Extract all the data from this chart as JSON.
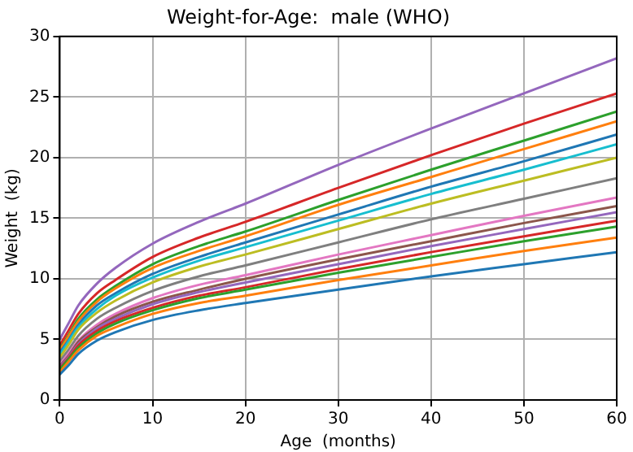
{
  "chart_data": {
    "type": "line",
    "title": "Weight-for-Age:  male (WHO)",
    "xlabel": "Age  (months)",
    "ylabel": "Weight  (kg)",
    "x": [
      0,
      1,
      2,
      4,
      6,
      10,
      15,
      20,
      30,
      40,
      50,
      60
    ],
    "xlim": [
      0,
      60
    ],
    "xticks": [
      0,
      10,
      20,
      30,
      40,
      50,
      60
    ],
    "ylim": [
      0,
      30
    ],
    "yticks": [
      0,
      5,
      10,
      15,
      20,
      25,
      30
    ],
    "grid": true,
    "marker": "none",
    "line_style": "solid",
    "series": [
      {
        "color": "#1f77b4",
        "values": [
          2.1,
          2.9,
          3.8,
          4.9,
          5.6,
          6.6,
          7.4,
          8.0,
          9.1,
          10.2,
          11.2,
          12.2
        ]
      },
      {
        "color": "#ff7f0e",
        "values": [
          2.3,
          3.2,
          4.1,
          5.3,
          6.0,
          7.1,
          8.0,
          8.6,
          9.9,
          11.1,
          12.3,
          13.4
        ]
      },
      {
        "color": "#2ca02c",
        "values": [
          2.5,
          3.4,
          4.3,
          5.5,
          6.3,
          7.4,
          8.4,
          9.1,
          10.5,
          11.8,
          13.1,
          14.3
        ]
      },
      {
        "color": "#d62728",
        "values": [
          2.6,
          3.5,
          4.5,
          5.7,
          6.5,
          7.6,
          8.6,
          9.3,
          10.8,
          12.2,
          13.5,
          14.8
        ]
      },
      {
        "color": "#9467bd",
        "values": [
          2.7,
          3.6,
          4.6,
          5.9,
          6.7,
          7.9,
          8.9,
          9.7,
          11.2,
          12.7,
          14.1,
          15.5
        ]
      },
      {
        "color": "#8c564b",
        "values": [
          2.8,
          3.7,
          4.8,
          6.0,
          6.9,
          8.1,
          9.1,
          10.0,
          11.6,
          13.1,
          14.6,
          16.0
        ]
      },
      {
        "color": "#e377c2",
        "values": [
          2.9,
          3.9,
          4.9,
          6.2,
          7.1,
          8.4,
          9.5,
          10.3,
          12.0,
          13.6,
          15.2,
          16.7
        ]
      },
      {
        "color": "#7f7f7f",
        "values": [
          3.2,
          4.2,
          5.3,
          6.7,
          7.6,
          9.0,
          10.2,
          11.1,
          13.0,
          14.9,
          16.6,
          18.3
        ]
      },
      {
        "color": "#bcbd22",
        "values": [
          3.5,
          4.6,
          5.8,
          7.2,
          8.2,
          9.7,
          11.0,
          12.0,
          14.1,
          16.2,
          18.1,
          20.0
        ]
      },
      {
        "color": "#17becf",
        "values": [
          3.7,
          4.9,
          6.0,
          7.5,
          8.6,
          10.1,
          11.5,
          12.6,
          14.8,
          17.0,
          19.0,
          21.1
        ]
      },
      {
        "color": "#1f77b4",
        "values": [
          3.9,
          5.0,
          6.2,
          7.8,
          8.8,
          10.4,
          11.8,
          13.0,
          15.3,
          17.6,
          19.7,
          21.9
        ]
      },
      {
        "color": "#ff7f0e",
        "values": [
          4.1,
          5.3,
          6.5,
          8.1,
          9.2,
          10.9,
          12.3,
          13.5,
          16.1,
          18.4,
          20.7,
          23.0
        ]
      },
      {
        "color": "#2ca02c",
        "values": [
          4.2,
          5.4,
          6.7,
          8.3,
          9.4,
          11.2,
          12.7,
          13.9,
          16.5,
          19.0,
          21.4,
          23.8
        ]
      },
      {
        "color": "#d62728",
        "values": [
          4.5,
          5.8,
          7.1,
          8.8,
          9.9,
          11.8,
          13.4,
          14.7,
          17.5,
          20.2,
          22.8,
          25.3
        ]
      },
      {
        "color": "#9467bd",
        "values": [
          5.0,
          6.4,
          7.8,
          9.6,
          10.9,
          12.9,
          14.7,
          16.2,
          19.4,
          22.4,
          25.3,
          28.2
        ]
      }
    ]
  }
}
